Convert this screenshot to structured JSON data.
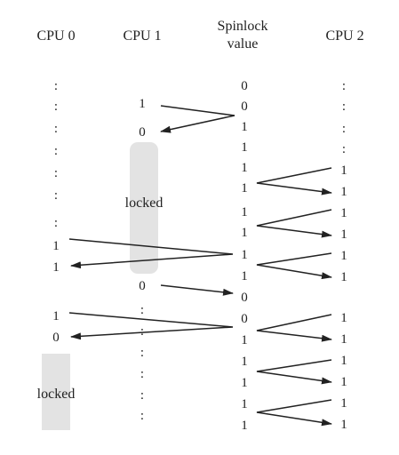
{
  "columns": {
    "cpu0": "CPU 0",
    "cpu1": "CPU 1",
    "spinlock_line1": "Spinlock",
    "spinlock_line2": "value",
    "cpu2": "CPU 2"
  },
  "lock_labels": {
    "cpu1": "locked",
    "cpu0": "locked"
  },
  "spinlock_values": [
    "0",
    "0",
    "1",
    "1",
    "1",
    "1",
    "1",
    "1",
    "1",
    "1",
    "0",
    "0",
    "1",
    "1",
    "1",
    "1",
    "1",
    "1"
  ],
  "cpu0_values": [
    "1",
    "1",
    "1",
    "0"
  ],
  "cpu1_values": [
    "1",
    "0",
    "0"
  ],
  "cpu2_values": [
    "1",
    "1",
    "1",
    "1",
    "1",
    "1",
    "1",
    "1",
    "1",
    "1",
    "1",
    "1"
  ],
  "colors": {
    "text": "#222222",
    "arrow": "#222222",
    "lock_band": "#e3e3e3"
  }
}
